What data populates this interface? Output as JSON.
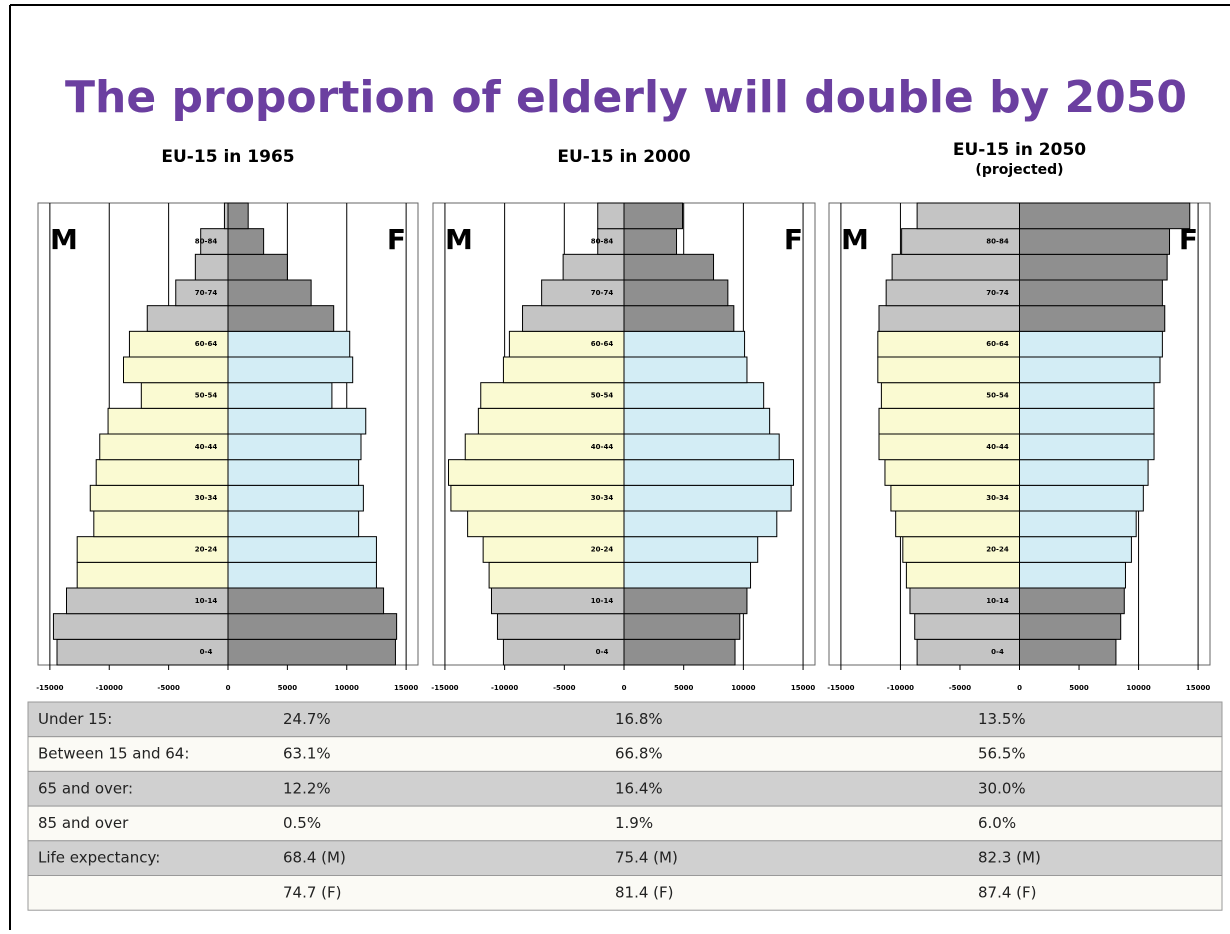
{
  "title": "The proportion of elderly will double by 2050",
  "chart_data": [
    {
      "type": "pyramid",
      "title": "EU-15 in 1965",
      "categories": [
        "0-4",
        null,
        "10-14",
        null,
        "20-24",
        null,
        "30-34",
        null,
        "40-44",
        null,
        "50-54",
        null,
        "60-64",
        null,
        "70-74",
        null,
        "80-84",
        null
      ],
      "series": [
        {
          "name": "M",
          "values": [
            -14400,
            -14700,
            -13600,
            -12700,
            -12700,
            -11300,
            -11600,
            -11100,
            -10800,
            -10100,
            -7300,
            -8800,
            -8300,
            -6800,
            -4400,
            -2750,
            -2300,
            -300
          ],
          "colors": [
            "#c4c4c4",
            "#c4c4c4",
            "#c4c4c4",
            "#fafad2",
            "#fafad2",
            "#fafad2",
            "#fafad2",
            "#fafad2",
            "#fafad2",
            "#fafad2",
            "#fafad2",
            "#fafad2",
            "#fafad2",
            "#c4c4c4",
            "#c4c4c4",
            "#c4c4c4",
            "#c4c4c4",
            "#c4c4c4"
          ]
        },
        {
          "name": "F",
          "values": [
            14100,
            14200,
            13100,
            12500,
            12500,
            11000,
            11400,
            11000,
            11200,
            11600,
            8750,
            10500,
            10250,
            8900,
            7000,
            5000,
            3000,
            1700
          ],
          "colors": [
            "#8f8f8f",
            "#8f8f8f",
            "#8f8f8f",
            "#d3edf5",
            "#d3edf5",
            "#d3edf5",
            "#d3edf5",
            "#d3edf5",
            "#d3edf5",
            "#d3edf5",
            "#d3edf5",
            "#d3edf5",
            "#d3edf5",
            "#8f8f8f",
            "#8f8f8f",
            "#8f8f8f",
            "#8f8f8f",
            "#8f8f8f"
          ]
        }
      ],
      "xlim": [
        -16000,
        16000
      ],
      "xticks": [
        -15000,
        -10000,
        -5000,
        0,
        5000,
        10000,
        15000
      ],
      "grid": true
    },
    {
      "type": "pyramid",
      "title": "EU-15 in 2000",
      "categories": [
        "0-4",
        null,
        "10-14",
        null,
        "20-24",
        null,
        "30-34",
        null,
        "40-44",
        null,
        "50-54",
        null,
        "60-64",
        null,
        "70-74",
        null,
        "80-84",
        null
      ],
      "series": [
        {
          "name": "M",
          "values": [
            -10100,
            -10600,
            -11100,
            -11300,
            -11800,
            -13100,
            -14500,
            -14700,
            -13300,
            -12200,
            -12000,
            -10100,
            -9600,
            -8500,
            -6900,
            -5100,
            -2200,
            -2200
          ],
          "colors": [
            "#c4c4c4",
            "#c4c4c4",
            "#c4c4c4",
            "#fafad2",
            "#fafad2",
            "#fafad2",
            "#fafad2",
            "#fafad2",
            "#fafad2",
            "#fafad2",
            "#fafad2",
            "#fafad2",
            "#fafad2",
            "#c4c4c4",
            "#c4c4c4",
            "#c4c4c4",
            "#c4c4c4",
            "#c4c4c4"
          ]
        },
        {
          "name": "F",
          "values": [
            9300,
            9700,
            10300,
            10600,
            11200,
            12800,
            14000,
            14200,
            13000,
            12200,
            11700,
            10300,
            10100,
            9200,
            8700,
            7500,
            4400,
            4900
          ],
          "colors": [
            "#8f8f8f",
            "#8f8f8f",
            "#8f8f8f",
            "#d3edf5",
            "#d3edf5",
            "#d3edf5",
            "#d3edf5",
            "#d3edf5",
            "#d3edf5",
            "#d3edf5",
            "#d3edf5",
            "#d3edf5",
            "#d3edf5",
            "#8f8f8f",
            "#8f8f8f",
            "#8f8f8f",
            "#8f8f8f",
            "#8f8f8f"
          ]
        }
      ],
      "xlim": [
        -16000,
        16000
      ],
      "xticks": [
        -15000,
        -10000,
        -5000,
        0,
        5000,
        10000,
        15000
      ],
      "grid": true
    },
    {
      "type": "pyramid",
      "title": "EU-15 in 2050",
      "subtitle": "(projected)",
      "categories": [
        "0-4",
        null,
        "10-14",
        null,
        "20-24",
        null,
        "30-34",
        null,
        "40-44",
        null,
        "50-54",
        null,
        "60-64",
        null,
        "70-74",
        null,
        "80-84",
        null
      ],
      "series": [
        {
          "name": "M",
          "values": [
            -8600,
            -8800,
            -9200,
            -9500,
            -9800,
            -10400,
            -10800,
            -11300,
            -11800,
            -11800,
            -11600,
            -11900,
            -11900,
            -11800,
            -11200,
            -10700,
            -9900,
            -8600
          ],
          "colors": [
            "#c4c4c4",
            "#c4c4c4",
            "#c4c4c4",
            "#fafad2",
            "#fafad2",
            "#fafad2",
            "#fafad2",
            "#fafad2",
            "#fafad2",
            "#fafad2",
            "#fafad2",
            "#fafad2",
            "#fafad2",
            "#c4c4c4",
            "#c4c4c4",
            "#c4c4c4",
            "#c4c4c4",
            "#c4c4c4"
          ]
        },
        {
          "name": "F",
          "values": [
            8100,
            8500,
            8800,
            8900,
            9400,
            9800,
            10400,
            10800,
            11300,
            11300,
            11300,
            11800,
            12000,
            12200,
            12000,
            12400,
            12600,
            14300
          ],
          "colors": [
            "#8f8f8f",
            "#8f8f8f",
            "#8f8f8f",
            "#d3edf5",
            "#d3edf5",
            "#d3edf5",
            "#d3edf5",
            "#d3edf5",
            "#d3edf5",
            "#d3edf5",
            "#d3edf5",
            "#d3edf5",
            "#d3edf5",
            "#8f8f8f",
            "#8f8f8f",
            "#8f8f8f",
            "#8f8f8f",
            "#8f8f8f"
          ]
        }
      ],
      "xlim": [
        -16000,
        16000
      ],
      "xticks": [
        -15000,
        -10000,
        -5000,
        0,
        5000,
        10000,
        15000
      ],
      "grid": true
    }
  ],
  "table": {
    "rows": [
      [
        "Under 15:",
        "24.7%",
        "16.8%",
        "13.5%"
      ],
      [
        "Between 15 and 64:",
        "63.1%",
        "66.8%",
        "56.5%"
      ],
      [
        "65 and over:",
        "12.2%",
        "16.4%",
        "30.0%"
      ],
      [
        "85 and over",
        "0.5%",
        "1.9%",
        "6.0%"
      ],
      [
        "Life expectancy:",
        "68.4 (M)",
        "75.4 (M)",
        "82.3 (M)"
      ],
      [
        "",
        "74.7 (F)",
        "81.4 (F)",
        "87.4 (F)"
      ]
    ]
  }
}
